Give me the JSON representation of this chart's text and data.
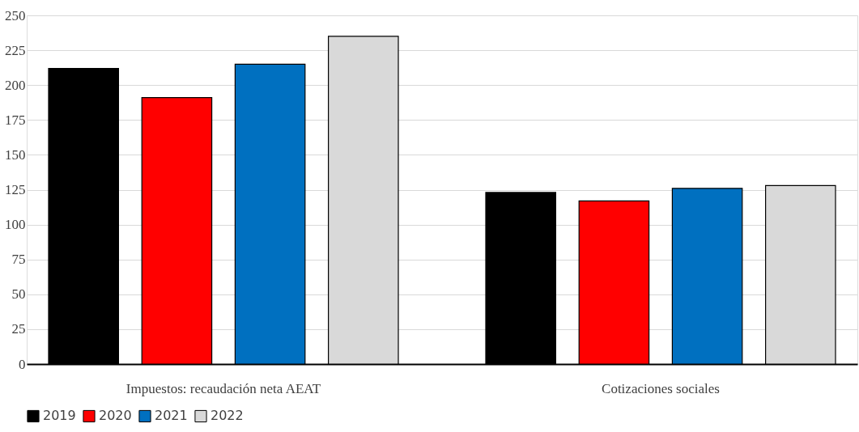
{
  "chart_data": {
    "type": "bar",
    "categories": [
      "Impuestos: recaudación neta AEAT",
      "Cotizaciones sociales"
    ],
    "series": [
      {
        "name": "2019",
        "color": "#000000",
        "values": [
          212,
          123
        ]
      },
      {
        "name": "2020",
        "color": "#ff0000",
        "values": [
          191,
          117
        ]
      },
      {
        "name": "2021",
        "color": "#0070c0",
        "values": [
          215,
          126
        ]
      },
      {
        "name": "2022",
        "color": "#d9d9d9",
        "values": [
          235,
          128
        ]
      }
    ],
    "ylim": [
      0,
      250
    ],
    "yticks": [
      0,
      25,
      50,
      75,
      100,
      125,
      150,
      175,
      200,
      225,
      250
    ],
    "grid": "y",
    "legend": "bottom"
  }
}
